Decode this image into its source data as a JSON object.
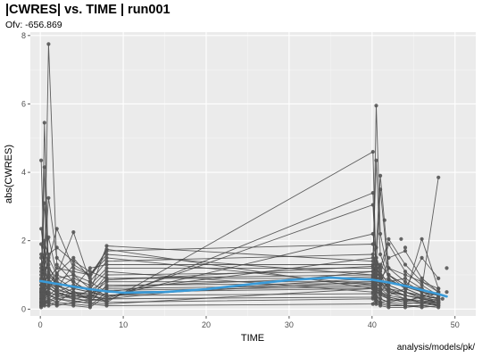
{
  "chart_data": {
    "type": "scatter",
    "title": "|CWRES| vs. TIME | run001",
    "subtitle": "Ofv: -656.869",
    "caption": "analysis/models/pk/",
    "xlabel": "TIME",
    "ylabel": "abs(CWRES)",
    "xlim": [
      -1.2,
      52.5
    ],
    "ylim": [
      -0.2,
      8.1
    ],
    "xticks": [
      0,
      10,
      20,
      30,
      40,
      50
    ],
    "yticks": [
      0,
      2,
      4,
      6,
      8
    ],
    "grid": true,
    "colors": {
      "panel": "#ebebeb",
      "grid_major": "#ffffff",
      "grid_minor": "#f5f5f5",
      "points": "#555555",
      "lines": "#444444",
      "smooth": "#3a9bd9"
    },
    "series": [
      {
        "times": [
          0.1,
          0.5,
          1,
          2,
          4,
          6,
          8,
          40.1,
          40.5,
          41,
          42,
          44,
          46,
          48
        ],
        "values": [
          4.35,
          1.2,
          0.8,
          0.5,
          0.35,
          0.2,
          0.15,
          0.6,
          0.7,
          0.5,
          0.35,
          0.25,
          0.2,
          0.15
        ]
      },
      {
        "times": [
          0.1,
          0.5,
          1,
          2,
          4,
          6,
          8,
          40.1,
          40.5,
          41,
          42,
          44,
          46,
          48
        ],
        "values": [
          0.5,
          4.15,
          0.9,
          0.6,
          0.4,
          0.3,
          0.2,
          4.6,
          0.9,
          0.7,
          0.5,
          0.3,
          0.2,
          0.1
        ]
      },
      {
        "times": [
          0.1,
          0.5,
          1,
          2,
          4,
          6,
          8,
          40.1,
          40.5,
          41,
          42,
          44,
          46,
          48
        ],
        "values": [
          0.3,
          5.45,
          1.1,
          0.7,
          0.5,
          0.4,
          0.3,
          1.1,
          0.6,
          0.5,
          0.4,
          0.3,
          0.2,
          0.2
        ]
      },
      {
        "times": [
          0.1,
          0.5,
          1,
          2,
          4,
          6,
          8,
          40.1,
          40.5,
          41,
          42,
          44,
          46,
          48
        ],
        "values": [
          0.2,
          0.9,
          7.75,
          1.3,
          0.8,
          0.5,
          0.4,
          0.9,
          1.4,
          1.0,
          0.6,
          0.4,
          0.3,
          0.2
        ]
      },
      {
        "times": [
          0.1,
          0.5,
          1,
          2,
          4,
          6,
          8,
          40.1,
          40.5,
          41,
          42,
          44,
          46,
          48
        ],
        "values": [
          2.35,
          1.6,
          1.0,
          0.7,
          0.5,
          0.3,
          0.25,
          3.4,
          1.2,
          0.8,
          0.5,
          0.4,
          0.3,
          0.2
        ]
      },
      {
        "times": [
          0.1,
          0.5,
          1,
          2,
          4,
          6,
          8,
          40.1,
          40.5,
          41,
          42,
          44,
          46,
          48
        ],
        "values": [
          1.1,
          3.1,
          1.3,
          0.7,
          0.4,
          0.35,
          0.3,
          3.05,
          1.3,
          0.9,
          0.6,
          0.4,
          0.3,
          0.25
        ]
      },
      {
        "times": [
          0.1,
          0.5,
          1,
          2,
          4,
          6,
          8,
          40.1,
          40.5,
          41,
          42,
          44,
          46,
          48
        ],
        "values": [
          0.7,
          1.4,
          3.25,
          1.5,
          1.0,
          0.6,
          0.4,
          0.8,
          5.95,
          2.2,
          1.0,
          0.6,
          0.4,
          0.3
        ]
      },
      {
        "times": [
          0.1,
          0.5,
          1,
          2,
          4,
          6,
          8,
          40.1,
          40.5,
          41,
          42,
          44,
          46,
          48
        ],
        "values": [
          1.9,
          1.2,
          2.1,
          1.0,
          0.8,
          0.5,
          0.35,
          2.2,
          1.5,
          1.1,
          0.7,
          0.5,
          0.35,
          0.25
        ]
      },
      {
        "times": [
          0.1,
          0.5,
          1,
          2,
          4,
          6,
          8,
          40.1,
          40.5,
          41,
          42,
          44,
          46,
          48
        ],
        "values": [
          0.4,
          2.0,
          1.5,
          1.0,
          2.25,
          0.8,
          0.5,
          1.5,
          4.35,
          1.6,
          0.9,
          0.6,
          0.4,
          0.3
        ]
      },
      {
        "times": [
          0.1,
          0.5,
          1,
          2,
          4,
          6,
          8,
          40.1,
          40.5,
          41,
          42,
          44,
          46,
          48
        ],
        "values": [
          1.5,
          0.9,
          1.6,
          1.8,
          1.4,
          1.1,
          0.9,
          1.0,
          1.8,
          3.9,
          1.2,
          0.8,
          0.5,
          0.3
        ]
      },
      {
        "times": [
          0.1,
          0.5,
          1,
          2,
          4,
          6,
          8,
          40.1,
          40.5,
          41,
          42,
          44,
          46,
          48
        ],
        "values": [
          0.2,
          0.5,
          0.7,
          1.05,
          1.5,
          0.9,
          1.75,
          0.6,
          1.3,
          3.5,
          1.0,
          0.7,
          0.5,
          0.4
        ]
      },
      {
        "times": [
          0.1,
          0.5,
          1,
          2,
          4,
          6,
          8,
          40.1,
          40.5,
          41,
          42,
          44,
          46,
          48
        ],
        "values": [
          0.9,
          1.8,
          1.2,
          0.9,
          0.6,
          0.5,
          1.85,
          1.4,
          1.0,
          0.8,
          0.6,
          0.5,
          0.4,
          0.3
        ]
      },
      {
        "times": [
          0.1,
          0.5,
          1,
          2,
          4,
          6,
          8,
          40.1,
          40.5,
          41,
          42,
          44,
          46,
          48
        ],
        "values": [
          0.6,
          1.0,
          1.4,
          2.35,
          1.2,
          1.0,
          1.7,
          1.9,
          1.5,
          1.2,
          2.05,
          1.3,
          0.8,
          0.5
        ]
      },
      {
        "times": [
          0.1,
          0.5,
          1,
          2,
          4,
          6,
          8,
          40.1,
          40.5,
          41,
          42,
          44,
          46,
          48
        ],
        "values": [
          0.3,
          0.6,
          0.9,
          1.2,
          1.1,
          1.0,
          1.6,
          1.0,
          0.8,
          0.6,
          0.5,
          0.4,
          2.05,
          0.6
        ]
      },
      {
        "times": [
          0.1,
          0.5,
          1,
          2,
          4,
          6,
          8,
          40.1,
          40.5,
          41,
          42,
          44,
          46,
          48
        ],
        "values": [
          1.3,
          1.1,
          0.8,
          0.6,
          1.3,
          1.0,
          1.5,
          0.7,
          1.1,
          1.3,
          1.0,
          0.7,
          0.6,
          3.85
        ]
      },
      {
        "times": [
          0.1,
          0.5,
          1,
          2,
          4,
          6,
          8,
          40.1,
          40.5,
          41,
          42,
          44,
          46,
          48
        ],
        "values": [
          0.2,
          0.4,
          0.6,
          0.9,
          1.0,
          0.8,
          1.4,
          1.6,
          1.2,
          1.0,
          1.9,
          1.1,
          0.7,
          0.4
        ]
      },
      {
        "times": [
          0.1,
          0.5,
          1,
          2,
          4,
          6,
          8,
          40.1,
          40.5,
          41,
          42,
          44,
          46,
          48
        ],
        "values": [
          1.0,
          0.8,
          0.5,
          0.4,
          0.6,
          1.2,
          1.3,
          1.3,
          0.9,
          0.7,
          1.5,
          1.7,
          0.9,
          0.5
        ]
      },
      {
        "times": [
          0.1,
          0.5,
          1,
          2,
          4,
          6,
          8,
          40.1,
          40.5,
          41,
          42,
          44,
          46,
          48
        ],
        "values": [
          0.5,
          0.3,
          0.4,
          0.6,
          0.9,
          0.7,
          1.2,
          1.2,
          0.8,
          0.6,
          0.4,
          0.6,
          1.5,
          0.9
        ]
      },
      {
        "times": [
          0.1,
          0.5,
          1,
          2,
          4,
          6,
          8,
          40.1,
          40.5,
          41,
          42,
          44,
          46,
          48
        ],
        "values": [
          0.8,
          0.6,
          0.3,
          0.5,
          0.7,
          0.6,
          1.1,
          0.5,
          0.7,
          0.9,
          1.2,
          1.0,
          0.8,
          0.6
        ]
      },
      {
        "times": [
          0.1,
          0.5,
          1,
          2,
          4,
          6,
          8,
          40.1,
          40.5,
          41,
          42,
          44,
          46,
          48
        ],
        "values": [
          0.15,
          0.35,
          0.5,
          0.4,
          0.3,
          0.4,
          1.0,
          1.1,
          1.0,
          0.8,
          0.7,
          0.5,
          0.3,
          0.2
        ]
      },
      {
        "times": [
          0.1,
          0.5,
          1,
          2,
          4,
          6,
          8,
          40.1,
          40.5,
          41,
          42,
          44,
          46,
          48
        ],
        "values": [
          0.6,
          0.5,
          0.4,
          0.3,
          0.2,
          0.3,
          0.9,
          0.9,
          0.6,
          0.5,
          0.8,
          0.9,
          0.6,
          0.4
        ]
      },
      {
        "times": [
          0.1,
          0.5,
          1,
          2,
          4,
          6,
          8,
          40.1,
          40.5,
          41,
          42,
          44,
          46,
          48
        ],
        "values": [
          0.25,
          0.2,
          0.3,
          0.2,
          0.5,
          0.4,
          0.8,
          0.8,
          0.5,
          0.4,
          0.3,
          0.2,
          0.4,
          0.5
        ]
      },
      {
        "times": [
          0.1,
          0.5,
          1,
          2,
          4,
          6,
          8,
          40.1,
          40.5,
          41,
          42,
          44,
          46,
          48
        ],
        "values": [
          1.6,
          0.7,
          0.2,
          0.1,
          0.2,
          0.2,
          0.7,
          0.75,
          0.4,
          0.3,
          0.2,
          0.3,
          0.2,
          0.1
        ]
      },
      {
        "times": [
          0.1,
          0.5,
          1,
          2,
          4,
          6,
          8,
          40.1,
          40.5,
          41,
          42,
          44,
          46,
          48
        ],
        "values": [
          0.1,
          0.15,
          0.2,
          0.3,
          0.4,
          0.3,
          0.6,
          0.7,
          0.3,
          0.2,
          0.15,
          0.1,
          0.1,
          0.05
        ]
      },
      {
        "times": [
          0.1,
          0.5,
          1,
          2,
          4,
          6,
          8,
          40.1,
          40.5,
          41,
          42,
          44,
          46,
          48
        ],
        "values": [
          0.45,
          0.25,
          0.15,
          0.2,
          0.15,
          0.1,
          0.5,
          0.6,
          0.2,
          0.15,
          0.1,
          0.1,
          0.05,
          0.1
        ]
      },
      {
        "times": [
          0.1,
          0.5,
          1,
          2,
          4,
          6,
          8,
          40.1,
          40.5,
          41,
          42,
          44,
          46,
          48
        ],
        "values": [
          0.05,
          0.1,
          0.1,
          0.15,
          0.1,
          0.05,
          0.4,
          0.45,
          0.15,
          0.1,
          0.05,
          0.05,
          0.1,
          0.15
        ]
      },
      {
        "times": [
          0.1,
          0.5,
          1,
          2,
          4,
          6,
          8,
          40.1,
          40.5,
          41,
          42,
          44,
          46,
          48
        ],
        "values": [
          0.35,
          0.45,
          0.6,
          0.5,
          0.3,
          0.25,
          0.3,
          0.35,
          0.5,
          0.45,
          0.3,
          0.2,
          0.15,
          0.2
        ]
      },
      {
        "times": [
          0.1,
          0.5,
          1,
          2,
          4,
          6,
          8,
          40.1,
          40.5,
          41,
          42,
          44,
          46,
          48
        ],
        "values": [
          0.1,
          0.2,
          0.25,
          0.35,
          0.5,
          0.45,
          0.2,
          0.3,
          0.25,
          0.2,
          0.25,
          0.3,
          0.25,
          0.2
        ]
      },
      {
        "times": [
          0.1,
          0.5,
          1,
          2,
          4,
          6,
          8,
          40.1,
          40.5,
          41,
          42,
          44,
          46,
          48
        ],
        "values": [
          0.7,
          0.55,
          0.45,
          0.3,
          0.25,
          0.15,
          0.1,
          0.15,
          0.35,
          0.3,
          0.2,
          0.15,
          0.2,
          0.3
        ]
      },
      {
        "times": [
          0.1,
          0.5,
          1,
          2,
          4,
          6,
          8,
          40.1,
          40.5,
          41,
          42,
          44,
          46,
          48
        ],
        "values": [
          0.55,
          0.75,
          1.05,
          0.8,
          0.6,
          0.5,
          0.55,
          0.65,
          0.55,
          0.45,
          0.35,
          0.25,
          0.35,
          0.45
        ]
      },
      {
        "times": [
          0.1,
          0.5,
          1,
          2,
          4,
          6,
          8,
          40.1,
          40.5,
          41,
          42,
          44,
          46,
          48
        ],
        "values": [
          0.85,
          0.65,
          0.7,
          0.55,
          0.45,
          0.35,
          0.65,
          0.95,
          0.85,
          0.75,
          0.55,
          0.4,
          0.3,
          0.35
        ]
      },
      {
        "times": [
          0.1,
          0.5,
          1,
          2,
          4,
          6,
          8,
          40.1,
          40.5,
          41,
          42,
          44,
          46,
          48
        ],
        "values": [
          1.2,
          1.0,
          0.65,
          0.45,
          0.35,
          0.55,
          0.85,
          1.25,
          1.05,
          0.95,
          0.85,
          0.65,
          0.5,
          0.4
        ]
      }
    ],
    "extra_points": [
      {
        "x": 49,
        "y": 1.2
      },
      {
        "x": 49,
        "y": 0.5
      },
      {
        "x": 48.5,
        "y": 0.3
      },
      {
        "x": 41.5,
        "y": 2.6
      },
      {
        "x": 43.5,
        "y": 2.05
      },
      {
        "x": 44,
        "y": 1.8
      }
    ],
    "smooth": {
      "x": [
        0,
        2,
        4,
        6,
        8,
        10,
        15,
        20,
        25,
        30,
        35,
        40,
        42,
        44,
        46,
        48,
        49
      ],
      "y": [
        0.82,
        0.74,
        0.66,
        0.58,
        0.52,
        0.48,
        0.5,
        0.58,
        0.72,
        0.85,
        0.92,
        0.86,
        0.78,
        0.68,
        0.56,
        0.44,
        0.37
      ]
    }
  }
}
